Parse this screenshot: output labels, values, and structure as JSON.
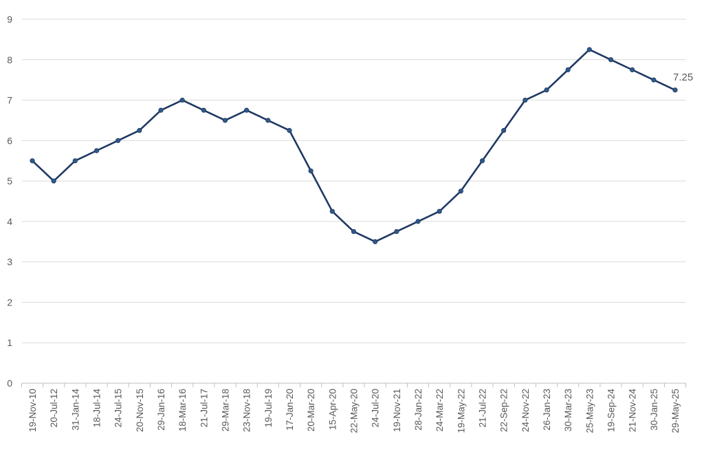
{
  "colors": {
    "series": "#1f3864",
    "marker": "#2e5a87"
  },
  "chart_data": {
    "type": "line",
    "title": "",
    "xlabel": "",
    "ylabel": "",
    "ylim": [
      0,
      9
    ],
    "yticks": [
      0,
      1,
      2,
      3,
      4,
      5,
      6,
      7,
      8,
      9
    ],
    "grid": true,
    "categories": [
      "19-Nov-10",
      "20-Jul-12",
      "31-Jan-14",
      "18-Jul-14",
      "24-Jul-15",
      "20-Nov-15",
      "29-Jan-16",
      "18-Mar-16",
      "21-Jul-17",
      "29-Mar-18",
      "23-Nov-18",
      "19-Jul-19",
      "17-Jan-20",
      "20-Mar-20",
      "15-Apr-20",
      "22-May-20",
      "24-Jul-20",
      "19-Nov-21",
      "28-Jan-22",
      "24-Mar-22",
      "19-May-22",
      "21-Jul-22",
      "22-Sep-22",
      "24-Nov-22",
      "26-Jan-23",
      "30-Mar-23",
      "25-May-23",
      "19-Sep-24",
      "21-Nov-24",
      "30-Jan-25",
      "29-May-25"
    ],
    "series": [
      {
        "values": [
          5.5,
          5.0,
          5.5,
          5.75,
          6.0,
          6.25,
          6.75,
          7.0,
          6.75,
          6.5,
          6.75,
          6.5,
          6.25,
          5.25,
          4.25,
          3.75,
          3.5,
          3.75,
          4.0,
          4.25,
          4.75,
          5.5,
          6.25,
          7.0,
          7.25,
          7.75,
          8.25,
          8.0,
          7.75,
          7.5,
          7.25
        ]
      }
    ],
    "data_labels": [
      {
        "index": 30,
        "text": "7.25"
      }
    ]
  }
}
